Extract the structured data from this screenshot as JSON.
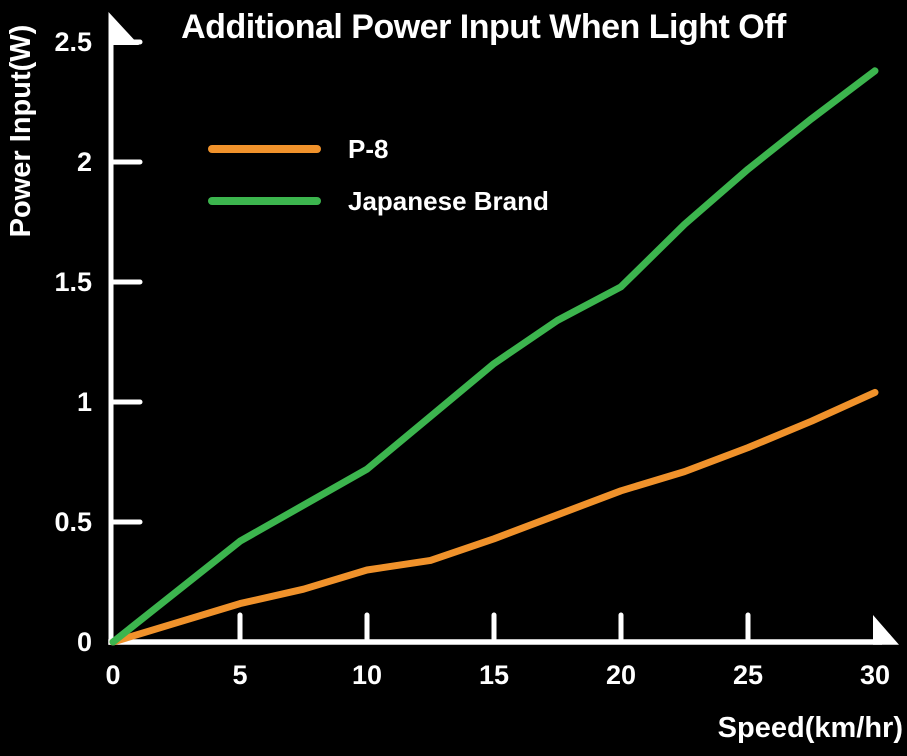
{
  "chart_data": {
    "type": "line",
    "title": "Additional Power Input When Light Off",
    "xlabel": "Speed(km/hr)",
    "ylabel": "Power Input(W)",
    "x": [
      0,
      2.5,
      5,
      7.5,
      10,
      12.5,
      15,
      17.5,
      20,
      22.5,
      25,
      27.5,
      30
    ],
    "series": [
      {
        "name": "P-8",
        "color": "#F0922B",
        "values": [
          0,
          0.08,
          0.16,
          0.22,
          0.3,
          0.34,
          0.43,
          0.53,
          0.63,
          0.71,
          0.81,
          0.92,
          1.04
        ]
      },
      {
        "name": "Japanese Brand",
        "color": "#3CB54E",
        "values": [
          0,
          0.21,
          0.42,
          0.57,
          0.72,
          0.94,
          1.16,
          1.34,
          1.48,
          1.74,
          1.97,
          2.18,
          2.38
        ]
      }
    ],
    "xlim": [
      0,
      30
    ],
    "ylim": [
      0,
      2.5
    ],
    "x_tick_values": [
      0,
      5,
      10,
      15,
      20,
      25,
      30
    ],
    "x_tick_labels": [
      "0",
      "5",
      "10",
      "15",
      "20",
      "25",
      "30"
    ],
    "y_tick_values": [
      0,
      0.5,
      1,
      1.5,
      2,
      2.5
    ],
    "y_tick_labels": [
      "0",
      "0.5",
      "1",
      "1.5",
      "2",
      "2.5"
    ],
    "grid": false,
    "legend_position": "upper-left-inside",
    "axis_color": "#FFFFFF",
    "text_color": "#FFFFFF",
    "background_color": "#000000"
  }
}
